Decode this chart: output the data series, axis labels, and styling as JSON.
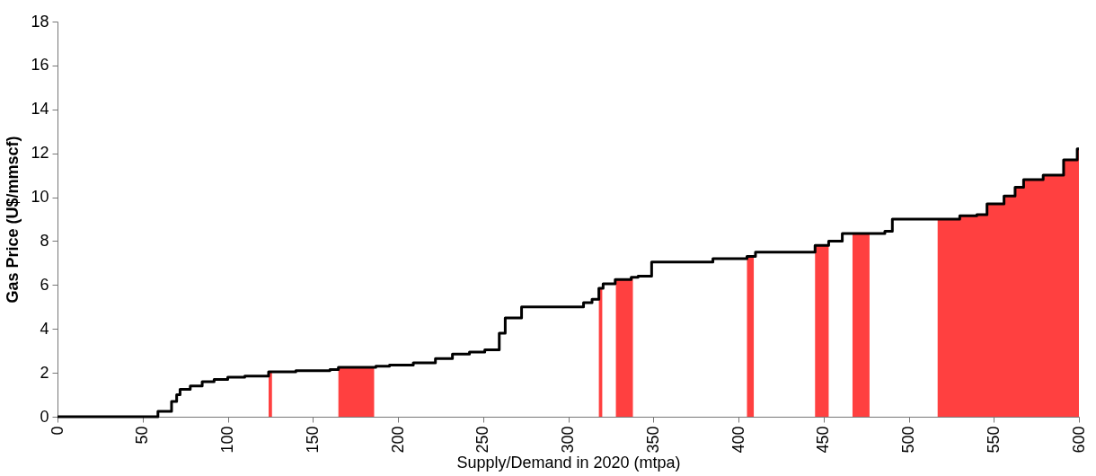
{
  "chart_data": {
    "type": "step",
    "xlabel": "Supply/Demand in 2020 (mtpa)",
    "ylabel": "Gas Price (U$/mmscf)",
    "xlim": [
      0,
      600
    ],
    "xticks": [
      0,
      50,
      100,
      150,
      200,
      250,
      300,
      350,
      400,
      450,
      500,
      550,
      600
    ],
    "ylim": [
      0,
      18
    ],
    "yticks": [
      0,
      2,
      4,
      6,
      8,
      10,
      12,
      14,
      16,
      18
    ],
    "grid": false,
    "series": [
      {
        "type": "area",
        "color": "#ff4040",
        "x": [
          124,
          126
        ],
        "values": [
          2.05,
          2.05
        ]
      },
      {
        "type": "area",
        "color": "#ff4040",
        "x": [
          165,
          186
        ],
        "values": [
          2.25,
          2.25
        ]
      },
      {
        "type": "area",
        "color": "#ff4040",
        "x": [
          318,
          320
        ],
        "values": [
          5.85,
          5.85
        ]
      },
      {
        "type": "area",
        "color": "#ff4040",
        "x": [
          328,
          337,
          338
        ],
        "values": [
          6.25,
          6.35,
          6.35
        ]
      },
      {
        "type": "area",
        "color": "#ff4040",
        "x": [
          405,
          409
        ],
        "values": [
          7.3,
          7.3
        ]
      },
      {
        "type": "area",
        "color": "#ff4040",
        "x": [
          445,
          453
        ],
        "values": [
          7.8,
          7.8
        ]
      },
      {
        "type": "area",
        "color": "#ff4040",
        "x": [
          467,
          477
        ],
        "values": [
          8.35,
          8.35
        ]
      },
      {
        "type": "area",
        "color": "#ff4040",
        "x": [
          517,
          530,
          540,
          546,
          556,
          562.5,
          567.5,
          579,
          591,
          599,
          600
        ],
        "values": [
          9.0,
          9.15,
          9.2,
          9.7,
          10.05,
          10.45,
          10.8,
          11.0,
          11.7,
          12.2,
          12.2
        ]
      },
      {
        "color": "#000000",
        "x": [
          0,
          59,
          67,
          70,
          72,
          78,
          85,
          92,
          100,
          110,
          124,
          140,
          160,
          165,
          187,
          195,
          209,
          222,
          232,
          242,
          251,
          259.5,
          263,
          272.6,
          309,
          314,
          318,
          320.5,
          327.6,
          337,
          341,
          349,
          385,
          405,
          410,
          445,
          453,
          461,
          486,
          490.4,
          530,
          540,
          546,
          556,
          562.5,
          567.5,
          579,
          591,
          599,
          600
        ],
        "values": [
          0,
          0.25,
          0.7,
          1.0,
          1.25,
          1.4,
          1.6,
          1.7,
          1.8,
          1.85,
          2.05,
          2.1,
          2.15,
          2.25,
          2.3,
          2.35,
          2.45,
          2.65,
          2.85,
          2.95,
          3.05,
          3.8,
          4.5,
          5.0,
          5.2,
          5.35,
          5.85,
          6.05,
          6.25,
          6.35,
          6.4,
          7.05,
          7.2,
          7.3,
          7.5,
          7.8,
          8.0,
          8.35,
          8.45,
          9.0,
          9.15,
          9.2,
          9.7,
          10.05,
          10.45,
          10.8,
          11.0,
          11.7,
          12.2,
          12.2
        ]
      }
    ]
  }
}
